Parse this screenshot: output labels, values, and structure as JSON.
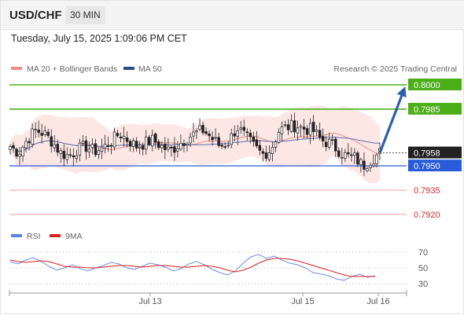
{
  "header": {
    "symbol": "USD/CHF",
    "interval": "30 MIN"
  },
  "timestamp": "Tuesday, July 15, 2025 1:09:06 PM CET",
  "legend": {
    "bb_label": "MA 20 + Bollinger Bands",
    "ma50_label": "MA 50",
    "credit": "Research © 2025 Trading Central",
    "rsi_label": "RSI",
    "rsi_ma_label": "9MA"
  },
  "colors": {
    "green": "#4caf1a",
    "blue": "#2a5cd9",
    "red": "#e85a5a",
    "candle": "#222222",
    "bb_fill": "#fde3e1",
    "ma20": "#e88a8a",
    "ma50": "#5a6fb0",
    "arrow": "#2e5fa8",
    "rsi": "#6a8de0",
    "rsi_ma": "#dd2020"
  },
  "chart_data": [
    {
      "type": "candlestick",
      "x_ticks": [
        "Jul 13",
        "Jul 15",
        "Jul 16"
      ],
      "ylim": [
        0.7913,
        0.8003
      ],
      "levels": [
        {
          "label": "0.8000",
          "value": 0.8,
          "kind": "resistance",
          "style": "green-box"
        },
        {
          "label": "0.7985",
          "value": 0.7985,
          "kind": "resistance",
          "style": "green-box"
        },
        {
          "label": "0.7958",
          "value": 0.7958,
          "kind": "last-price",
          "style": "dark-box"
        },
        {
          "label": "0.7950",
          "value": 0.795,
          "kind": "pivot",
          "style": "blue-box"
        },
        {
          "label": "0.7935",
          "value": 0.7935,
          "kind": "support",
          "style": "red-text"
        },
        {
          "label": "0.7920",
          "value": 0.792,
          "kind": "support",
          "style": "red-text"
        }
      ],
      "series": [
        {
          "name": "MA 20 + Bollinger Bands"
        },
        {
          "name": "MA 50"
        }
      ],
      "close_path": [
        0.7962,
        0.7958,
        0.7966,
        0.7972,
        0.797,
        0.7965,
        0.7958,
        0.7956,
        0.796,
        0.7962,
        0.7959,
        0.7961,
        0.7965,
        0.797,
        0.7966,
        0.7962,
        0.7964,
        0.7966,
        0.7962,
        0.7959,
        0.7963,
        0.7967,
        0.797,
        0.7972,
        0.7967,
        0.7962,
        0.7965,
        0.7974,
        0.7968,
        0.7962,
        0.7957,
        0.796,
        0.7972,
        0.7974,
        0.7975,
        0.7973,
        0.7972,
        0.7966,
        0.7964,
        0.796,
        0.7956,
        0.7955,
        0.795,
        0.7954,
        0.7958
      ],
      "arrow": {
        "from": 0.7958,
        "to": 0.8
      }
    },
    {
      "type": "line",
      "series": [
        {
          "name": "RSI"
        },
        {
          "name": "9MA"
        }
      ],
      "y_ticks": [
        70,
        50,
        30
      ],
      "ylim": [
        20,
        78
      ],
      "rsi_values": [
        58,
        55,
        60,
        63,
        58,
        52,
        47,
        50,
        54,
        49,
        46,
        50,
        53,
        57,
        55,
        50,
        48,
        52,
        56,
        54,
        51,
        46,
        49,
        55,
        58,
        54,
        48,
        44,
        41,
        46,
        56,
        64,
        67,
        62,
        65,
        60,
        56,
        54,
        50,
        44,
        42,
        40,
        36,
        34,
        39,
        42,
        38,
        40
      ],
      "ma_values": [
        60,
        58,
        57,
        58,
        59,
        58,
        55,
        52,
        51,
        51,
        50,
        50,
        51,
        52,
        53,
        53,
        52,
        51,
        52,
        53,
        53,
        52,
        51,
        51,
        52,
        53,
        52,
        50,
        47,
        45,
        47,
        51,
        56,
        60,
        62,
        62,
        61,
        59,
        56,
        53,
        50,
        47,
        44,
        41,
        39,
        39,
        39,
        39
      ]
    }
  ]
}
